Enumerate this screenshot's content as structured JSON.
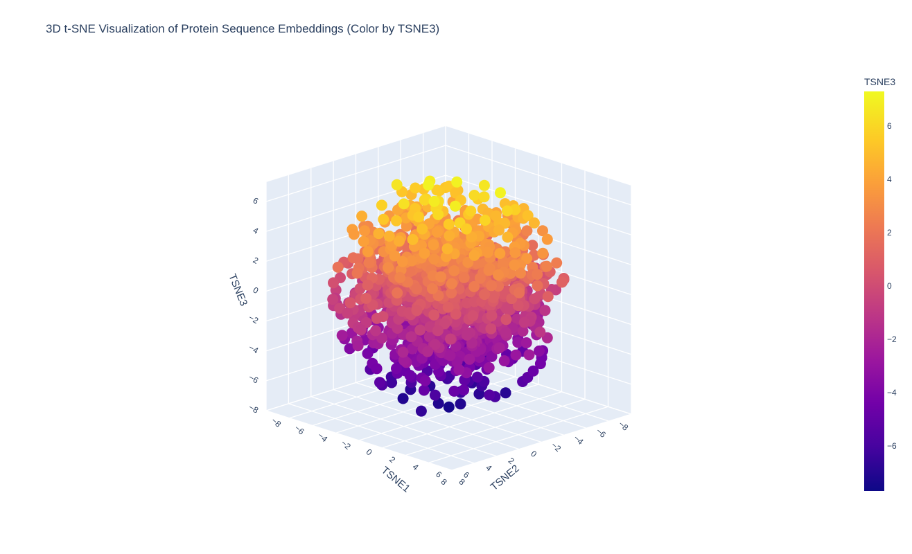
{
  "chart_data": {
    "type": "scatter",
    "title": "3D t-SNE Visualization of Protein Sequence Embeddings (Color by TSNE3)",
    "xlabel": "TSNE1",
    "ylabel": "TSNE2",
    "zlabel": "TSNE3",
    "xlim": [
      -8,
      8
    ],
    "ylim": [
      -8,
      8
    ],
    "zlim": [
      -8,
      7.3
    ],
    "x_ticks": [
      "−8",
      "−6",
      "−4",
      "−2",
      "0",
      "2",
      "4",
      "6",
      "8"
    ],
    "y_ticks": [
      "−8",
      "−6",
      "−4",
      "−2",
      "0",
      "2",
      "4",
      "6",
      "8"
    ],
    "z_ticks": [
      "−8",
      "−6",
      "−4",
      "−2",
      "0",
      "2",
      "4",
      "6"
    ],
    "colorbar": {
      "title": "TSNE3",
      "colorscale": "plasma",
      "range": [
        -7.7,
        7.3
      ],
      "ticks": [
        "6",
        "4",
        "2",
        "0",
        "−2",
        "−4",
        "−6"
      ]
    },
    "sample_points": [
      [
        -3.5,
        1.0,
        6.6
      ],
      [
        2.5,
        2.0,
        6.9
      ],
      [
        3.0,
        -1.5,
        7.1
      ],
      [
        -0.5,
        0.5,
        5.8
      ],
      [
        1.5,
        2.5,
        6.2
      ],
      [
        0.0,
        -5.5,
        0.9
      ],
      [
        -4.0,
        3.5,
        1.5
      ],
      [
        5.5,
        -1.0,
        0.3
      ],
      [
        -5.0,
        -4.0,
        -0.8
      ],
      [
        4.0,
        5.0,
        -1.5
      ],
      [
        2.0,
        -3.0,
        -6.9
      ],
      [
        0.5,
        0.5,
        -7.4
      ],
      [
        -2.0,
        2.0,
        -7.1
      ],
      [
        1.5,
        4.0,
        -6.6
      ],
      [
        -3.0,
        -2.0,
        -4.5
      ],
      [
        3.5,
        3.5,
        -2.5
      ],
      [
        -1.0,
        -4.5,
        3.5
      ],
      [
        -2.5,
        5.0,
        4.0
      ],
      [
        4.5,
        1.0,
        3.0
      ],
      [
        0.0,
        0.0,
        0.0
      ]
    ]
  }
}
